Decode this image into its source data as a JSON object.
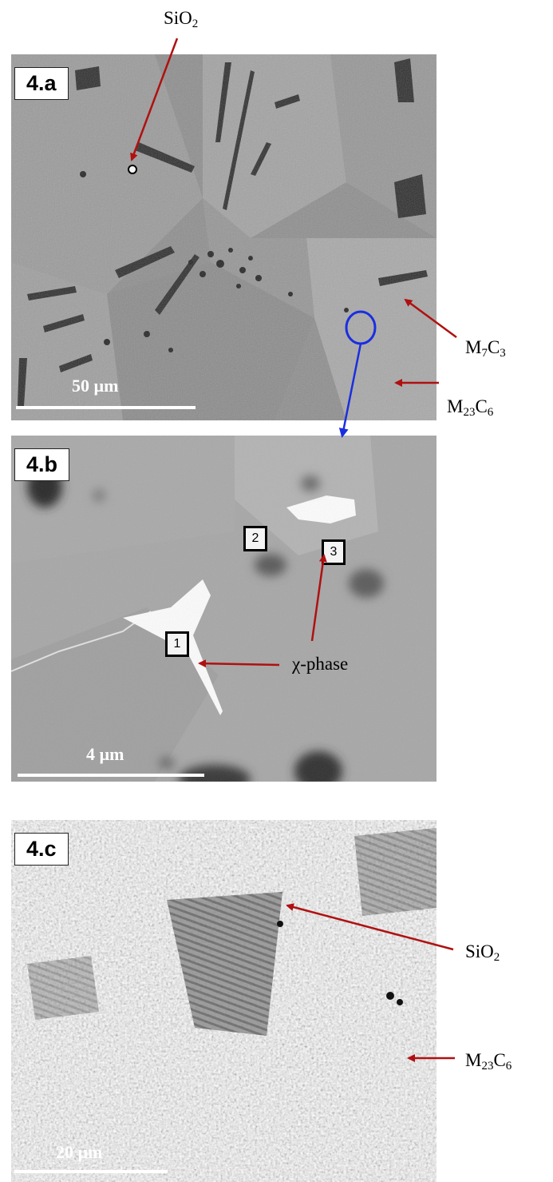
{
  "panels": {
    "a": {
      "label": "4.a",
      "scale": "50 µm"
    },
    "b": {
      "label": "4.b",
      "scale": "4 µm"
    },
    "c": {
      "label": "4.c",
      "scale": "20 µm"
    }
  },
  "callouts": {
    "sio2_top": {
      "main": "SiO",
      "sub": "2"
    },
    "m7c3": {
      "m": "M",
      "s1": "7",
      "c": "C",
      "s2": "3"
    },
    "m23c6_a": {
      "m": "M",
      "s1": "23",
      "c": "C",
      "s2": "6"
    },
    "chi_phase": "χ-phase",
    "sio2_c": {
      "main": "SiO",
      "sub": "2"
    },
    "m23c6_c": {
      "m": "M",
      "s1": "23",
      "c": "C",
      "s2": "6"
    }
  },
  "markers": [
    "1",
    "2",
    "3"
  ],
  "colors": {
    "arrow_red": "#b01010",
    "arrow_blue": "#1a2ee0"
  }
}
